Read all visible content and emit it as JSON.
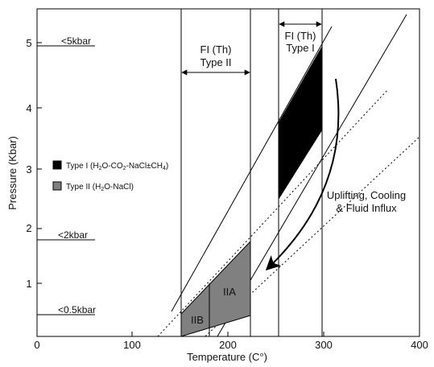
{
  "axes": {
    "xlabel": "Temperature (C°)",
    "ylabel": "Pressure (Kbar)",
    "x_ticks": [
      "0",
      "100",
      "200",
      "300",
      "400"
    ],
    "y_ticks": [
      "1",
      "2",
      "3",
      "4",
      "5"
    ]
  },
  "pressure_marks": {
    "p5": "<5kbar",
    "p2": "<2kbar",
    "p05": "<0.5kbar"
  },
  "fi_type2": {
    "line1": "FI (Th)",
    "line2": "Type II"
  },
  "fi_type1": {
    "line1": "FI (Th)",
    "line2": "Type I"
  },
  "legend": {
    "type1": {
      "prefix": "Type I (H",
      "sub1": "2",
      "mid1": "O-CO",
      "sub2": "2",
      "mid2": "-NaCl±CH",
      "sub3": "4",
      "suffix": ")"
    },
    "type2": {
      "prefix": "Type II (H",
      "sub1": "2",
      "suffix": "O-NaCl)"
    }
  },
  "regions": {
    "iia": "IIA",
    "iib": "IIB"
  },
  "process": {
    "line1": "Uplifting, Cooling",
    "line2": "& Fluid Influx"
  },
  "colors": {
    "type1_fill": "#000000",
    "type2_fill": "#808080",
    "line": "#000000"
  }
}
